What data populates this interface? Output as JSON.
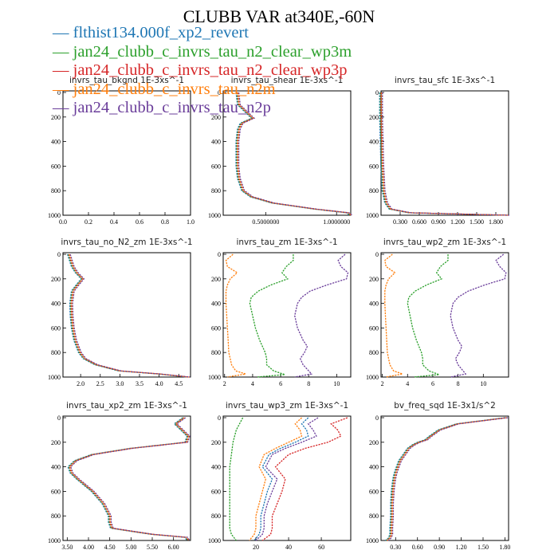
{
  "title": "CLUBB VAR at340E,-60N",
  "legend": [
    {
      "label": "flthist134.000f_xp2_revert",
      "color": "#1f77b4"
    },
    {
      "label": "jan24_clubb_c_invrs_tau_n2_clear_wp3m",
      "color": "#2ca02c"
    },
    {
      "label": "jan24_clubb_c_invrs_tau_n2_clear_wp3p",
      "color": "#d62728"
    },
    {
      "label": "jan24_clubb_c_invrs_tau_n2m",
      "color": "#ff7f0e"
    },
    {
      "label": "jan24_clubb_c_invrs_tau_n2p",
      "color": "#6a3d9a"
    }
  ],
  "colors": {
    "blue": "#1f77b4",
    "green": "#2ca02c",
    "red": "#d62728",
    "orange": "#ff7f0e",
    "purple": "#6a3d9a"
  },
  "chart_data": [
    {
      "type": "line",
      "title": "invrs_tau_bkgnd  1E-3xs^-1",
      "xlim": [
        0,
        1
      ],
      "ylim": [
        1000,
        0
      ],
      "xticks": [
        "0.0",
        "0.2",
        "0.4",
        "0.6",
        "0.8",
        "1.0"
      ],
      "xtick_values": [
        0,
        0.2,
        0.4,
        0.6,
        0.8,
        1.0
      ],
      "yticks": [
        "0",
        "200",
        "400",
        "600",
        "800",
        "1000"
      ],
      "series": []
    },
    {
      "type": "line",
      "title": "invrs_tau_shear  1E-3xs^-1",
      "xlim": [
        0.2,
        1.1
      ],
      "ylim": [
        1000,
        0
      ],
      "xticks": [
        "0.5000000",
        "1.0000000"
      ],
      "xtick_values": [
        0.5,
        1.0
      ],
      "yticks": [
        "0",
        "200",
        "400",
        "600",
        "800",
        "1000"
      ],
      "series": [
        {
          "p": [
            0,
            100,
            200,
            210,
            250,
            300,
            400,
            500,
            600,
            700,
            800,
            850,
            900,
            950,
            980,
            1000
          ],
          "x": [
            0.3,
            0.31,
            0.4,
            0.41,
            0.33,
            0.31,
            0.3,
            0.3,
            0.3,
            0.31,
            0.34,
            0.4,
            0.55,
            0.85,
            1.08,
            1.1
          ]
        }
      ]
    },
    {
      "type": "line",
      "title": "invrs_tau_sfc  1E-3xs^-1",
      "xlim": [
        0,
        2.0
      ],
      "ylim": [
        1000,
        0
      ],
      "xticks": [
        "0.300",
        "0.600",
        "0.900",
        "1.200",
        "1.500",
        "1.800"
      ],
      "xtick_values": [
        0.3,
        0.6,
        0.9,
        1.2,
        1.5,
        1.8
      ],
      "yticks": [
        "0",
        "200",
        "400",
        "600",
        "800",
        "1000"
      ],
      "series": [
        {
          "p": [
            0,
            200,
            400,
            600,
            800,
            900,
            950,
            980,
            1000
          ],
          "x": [
            0.0,
            0.0,
            0.01,
            0.02,
            0.04,
            0.08,
            0.15,
            0.45,
            2.0
          ]
        }
      ]
    },
    {
      "type": "line",
      "title": "invrs_tau_no_N2_zm  1E-3xs^-1",
      "xlim": [
        1.55,
        4.8
      ],
      "ylim": [
        1000,
        0
      ],
      "xticks": [
        "2.0",
        "2.5",
        "3.0",
        "3.5",
        "4.0",
        "4.5"
      ],
      "xtick_values": [
        2.0,
        2.5,
        3.0,
        3.5,
        4.0,
        4.5
      ],
      "yticks": [
        "0",
        "200",
        "400",
        "600",
        "800",
        "1000"
      ],
      "series": [
        {
          "p": [
            0,
            100,
            150,
            200,
            250,
            300,
            400,
            500,
            600,
            700,
            800,
            850,
            900,
            950,
            975,
            1000
          ],
          "x": [
            1.7,
            1.8,
            1.9,
            2.05,
            1.92,
            1.8,
            1.76,
            1.77,
            1.8,
            1.86,
            1.98,
            2.1,
            2.4,
            3.0,
            4.0,
            4.75
          ]
        }
      ]
    },
    {
      "type": "line",
      "title": "invrs_tau_zm  1E-3xs^-1",
      "xlim": [
        1.9,
        11.0
      ],
      "ylim": [
        1000,
        0
      ],
      "xticks": [
        "2",
        "4",
        "6",
        "8",
        "10"
      ],
      "xtick_values": [
        2,
        4,
        6,
        8,
        10
      ],
      "yticks": [
        "0",
        "200",
        "400",
        "600",
        "800",
        "1000"
      ],
      "series": [
        {
          "name": "orange",
          "p": [
            0,
            50,
            100,
            150,
            200,
            250,
            300,
            400,
            500,
            600,
            700,
            800,
            850,
            900,
            950,
            975,
            1000
          ],
          "x": [
            2.6,
            2.1,
            2.2,
            2.9,
            2.4,
            2.2,
            2.1,
            2.1,
            2.15,
            2.2,
            2.25,
            2.3,
            2.4,
            2.5,
            2.8,
            3.5,
            2.2
          ]
        },
        {
          "name": "green",
          "p": [
            0,
            50,
            100,
            150,
            200,
            250,
            300,
            350,
            400,
            500,
            600,
            700,
            800,
            850,
            900,
            950,
            980,
            1000
          ],
          "x": [
            6.9,
            6.9,
            6.4,
            6.1,
            6.5,
            5.3,
            4.4,
            3.9,
            3.8,
            4.0,
            4.2,
            4.5,
            4.9,
            5.0,
            5.0,
            5.5,
            6.3,
            4.3
          ]
        },
        {
          "name": "purple",
          "p": [
            0,
            50,
            100,
            150,
            200,
            250,
            300,
            350,
            400,
            500,
            600,
            700,
            750,
            800,
            850,
            900,
            950,
            975,
            1000
          ],
          "x": [
            10.6,
            10.1,
            10.3,
            10.8,
            10.7,
            9.3,
            8.1,
            7.5,
            7.2,
            7.0,
            7.2,
            7.6,
            7.9,
            7.7,
            7.4,
            7.6,
            8.0,
            8.2,
            7.0
          ]
        }
      ]
    },
    {
      "type": "line",
      "title": "invrs_tau_wp2_zm  1E-3xs^-1",
      "xlim": [
        1.9,
        12.0
      ],
      "ylim": [
        1000,
        0
      ],
      "xticks": [
        "2",
        "4",
        "6",
        "8",
        "10"
      ],
      "xtick_values": [
        2,
        4,
        6,
        8,
        10
      ],
      "yticks": [
        "0",
        "200",
        "400",
        "600",
        "800",
        "1000"
      ],
      "series": [
        {
          "name": "orange",
          "p": [
            0,
            50,
            100,
            150,
            200,
            250,
            300,
            400,
            500,
            600,
            700,
            800,
            850,
            900,
            950,
            975,
            1000
          ],
          "x": [
            2.8,
            2.2,
            2.3,
            3.0,
            2.5,
            2.3,
            2.2,
            2.2,
            2.25,
            2.3,
            2.35,
            2.4,
            2.5,
            2.6,
            2.9,
            3.6,
            2.3
          ]
        },
        {
          "name": "green",
          "p": [
            0,
            50,
            100,
            150,
            200,
            250,
            300,
            350,
            400,
            500,
            600,
            700,
            800,
            850,
            900,
            950,
            980,
            1000
          ],
          "x": [
            7.2,
            7.2,
            6.6,
            6.3,
            6.7,
            5.5,
            4.6,
            4.1,
            4.0,
            4.2,
            4.4,
            4.7,
            5.1,
            5.2,
            5.2,
            5.7,
            6.5,
            4.5
          ]
        },
        {
          "name": "purple",
          "p": [
            0,
            50,
            100,
            150,
            200,
            250,
            300,
            350,
            400,
            500,
            600,
            700,
            750,
            800,
            850,
            900,
            950,
            975,
            1000
          ],
          "x": [
            11.6,
            11.0,
            11.3,
            11.8,
            11.7,
            10.1,
            8.8,
            8.0,
            7.6,
            7.4,
            7.6,
            8.0,
            8.3,
            8.1,
            7.8,
            8.0,
            8.4,
            8.6,
            7.4
          ]
        }
      ]
    },
    {
      "type": "line",
      "title": "invrs_tau_xp2_zm  1E-3xs^-1",
      "xlim": [
        3.4,
        6.4
      ],
      "ylim": [
        1000,
        0
      ],
      "xticks": [
        "3.50",
        "4.00",
        "4.50",
        "5.00",
        "5.50",
        "6.00"
      ],
      "xtick_values": [
        3.5,
        4.0,
        4.5,
        5.0,
        5.5,
        6.0
      ],
      "yticks": [
        "0",
        "200",
        "400",
        "600",
        "800",
        "1000"
      ],
      "series": [
        {
          "p": [
            0,
            50,
            100,
            150,
            200,
            250,
            300,
            350,
            400,
            450,
            500,
            600,
            700,
            800,
            850,
            900,
            950,
            975,
            1000
          ],
          "x": [
            6.25,
            6.05,
            6.2,
            6.35,
            6.3,
            5.0,
            4.1,
            3.7,
            3.55,
            3.6,
            3.75,
            4.1,
            4.35,
            4.5,
            4.5,
            4.55,
            5.5,
            6.3,
            6.35
          ]
        }
      ]
    },
    {
      "type": "line",
      "title": "invrs_tau_wp3_zm  1E-3xs^-1",
      "xlim": [
        0,
        78
      ],
      "ylim": [
        1000,
        0
      ],
      "xticks": [
        "20",
        "40",
        "60"
      ],
      "xtick_values": [
        20,
        40,
        60
      ],
      "yticks": [
        "0",
        "200",
        "400",
        "600",
        "800",
        "1000"
      ],
      "series": [
        {
          "name": "green",
          "p": [
            0,
            100,
            200,
            300,
            400,
            500,
            600,
            700,
            800,
            900,
            950,
            1000
          ],
          "x": [
            12,
            8,
            6,
            5,
            4,
            4,
            4,
            4,
            4,
            4,
            5,
            8
          ]
        },
        {
          "name": "orange",
          "p": [
            0,
            50,
            100,
            150,
            200,
            250,
            300,
            400,
            500,
            600,
            700,
            800,
            900,
            950,
            1000
          ],
          "x": [
            48,
            44,
            47,
            48,
            40,
            32,
            25,
            22,
            26,
            24,
            22,
            20,
            20,
            19,
            16
          ]
        },
        {
          "name": "blue",
          "p": [
            0,
            50,
            100,
            150,
            200,
            250,
            300,
            400,
            500,
            600,
            700,
            800,
            900,
            950,
            1000
          ],
          "x": [
            52,
            48,
            51,
            52,
            44,
            35,
            28,
            24,
            30,
            27,
            25,
            23,
            23,
            22,
            19
          ]
        },
        {
          "name": "purple",
          "p": [
            0,
            50,
            100,
            150,
            200,
            250,
            300,
            400,
            500,
            600,
            700,
            800,
            900,
            950,
            1000
          ],
          "x": [
            58,
            52,
            55,
            57,
            48,
            38,
            30,
            26,
            33,
            30,
            27,
            25,
            25,
            24,
            20
          ]
        },
        {
          "name": "red",
          "p": [
            0,
            50,
            100,
            150,
            200,
            250,
            300,
            400,
            500,
            600,
            700,
            800,
            900,
            950,
            1000
          ],
          "x": [
            76,
            66,
            70,
            72,
            64,
            50,
            40,
            32,
            38,
            36,
            33,
            30,
            30,
            29,
            24
          ]
        }
      ]
    },
    {
      "type": "line",
      "title": "bv_freq_sqd  1E-3x1/s^2",
      "xlim": [
        0.1,
        1.85
      ],
      "ylim": [
        1000,
        0
      ],
      "xticks": [
        "0.30",
        "0.60",
        "0.90",
        "1.20",
        "1.50",
        "1.80"
      ],
      "xtick_values": [
        0.3,
        0.6,
        0.9,
        1.2,
        1.5,
        1.8
      ],
      "yticks": [
        "0",
        "200",
        "400",
        "600",
        "800",
        "1000"
      ],
      "series": [
        {
          "p": [
            0,
            50,
            100,
            150,
            180,
            200,
            220,
            250,
            300,
            350,
            400,
            450,
            500,
            550,
            600,
            700,
            800,
            900,
            950,
            980,
            1000
          ],
          "x": [
            1.82,
            1.15,
            0.9,
            0.78,
            0.72,
            0.62,
            0.55,
            0.48,
            0.42,
            0.36,
            0.33,
            0.3,
            0.28,
            0.27,
            0.26,
            0.25,
            0.25,
            0.24,
            0.24,
            0.22,
            0.18
          ]
        }
      ]
    }
  ]
}
